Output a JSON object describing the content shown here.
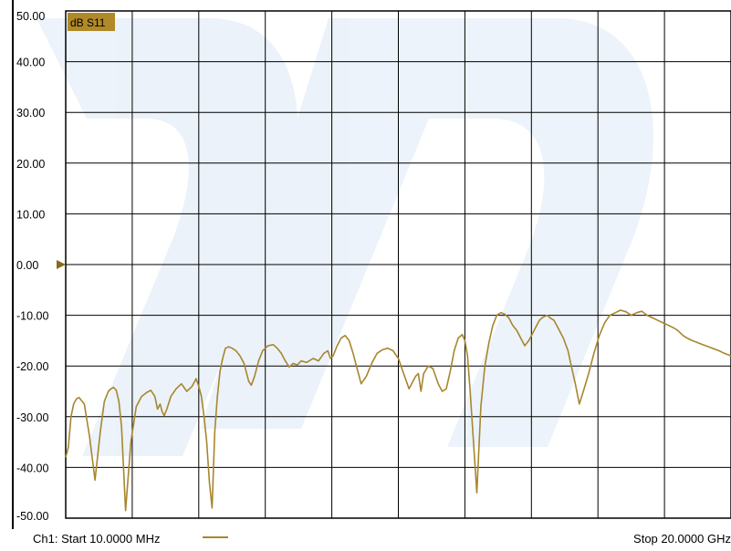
{
  "chart_data": {
    "type": "line",
    "trace_label": "dB S11",
    "ylim": [
      -50,
      50
    ],
    "y_ticks": [
      "50.00",
      "40.00",
      "30.00",
      "20.00",
      "10.00",
      "0.00",
      "-10.00",
      "-20.00",
      "-30.00",
      "-40.00",
      "-50.00"
    ],
    "x_divisions": 10,
    "reference_level": 0,
    "grid": true,
    "colors": {
      "trace": "#a8862e",
      "label_bg": "#b08a28",
      "marker": "#8a6a18",
      "grid": "#000000"
    },
    "series": [
      {
        "x_frac": [
          0.0,
          0.004,
          0.008,
          0.012,
          0.016,
          0.02,
          0.028,
          0.036,
          0.044,
          0.052,
          0.058,
          0.064,
          0.068,
          0.072,
          0.076,
          0.08,
          0.084,
          0.09,
          0.098,
          0.106,
          0.114,
          0.122,
          0.128,
          0.134,
          0.138,
          0.142,
          0.145,
          0.148,
          0.152,
          0.158,
          0.166,
          0.174,
          0.182,
          0.19,
          0.196,
          0.2,
          0.204,
          0.208,
          0.212,
          0.216,
          0.22,
          0.224,
          0.228,
          0.232,
          0.236,
          0.24,
          0.245,
          0.25,
          0.256,
          0.262,
          0.268,
          0.272,
          0.275,
          0.279,
          0.284,
          0.29,
          0.296,
          0.304,
          0.312,
          0.318,
          0.324,
          0.33,
          0.336,
          0.342,
          0.348,
          0.354,
          0.362,
          0.372,
          0.38,
          0.388,
          0.394,
          0.398,
          0.402,
          0.408,
          0.414,
          0.42,
          0.426,
          0.432,
          0.438,
          0.444,
          0.452,
          0.46,
          0.468,
          0.476,
          0.484,
          0.492,
          0.5,
          0.508,
          0.516,
          0.522,
          0.526,
          0.53,
          0.534,
          0.538,
          0.545,
          0.552,
          0.56,
          0.566,
          0.572,
          0.578,
          0.584,
          0.59,
          0.596,
          0.6,
          0.604,
          0.608,
          0.612,
          0.618,
          0.624,
          0.63,
          0.636,
          0.642,
          0.648,
          0.654,
          0.66,
          0.666,
          0.672,
          0.678,
          0.684,
          0.69,
          0.696,
          0.702,
          0.708,
          0.712,
          0.716,
          0.72,
          0.724,
          0.728,
          0.734,
          0.74,
          0.748,
          0.755,
          0.76,
          0.766,
          0.772,
          0.778,
          0.786,
          0.794,
          0.802,
          0.81,
          0.818,
          0.826,
          0.834,
          0.842,
          0.85,
          0.858,
          0.866,
          0.874,
          0.882,
          0.89,
          0.898,
          0.906,
          0.914,
          0.92,
          0.924,
          0.928,
          0.934,
          0.942,
          0.952,
          0.962,
          0.972,
          0.982,
          0.99,
          1.0
        ],
        "y": [
          -38.0,
          -36.0,
          -30.0,
          -27.5,
          -26.5,
          -26.2,
          -27.5,
          -34.0,
          -42.5,
          -33.0,
          -27.0,
          -25.0,
          -24.5,
          -24.2,
          -24.8,
          -27.0,
          -32.0,
          -48.5,
          -35.0,
          -28.0,
          -26.0,
          -25.2,
          -24.8,
          -26.0,
          -28.5,
          -27.5,
          -29.0,
          -29.8,
          -28.5,
          -26.0,
          -24.5,
          -23.5,
          -25.0,
          -24.0,
          -22.5,
          -24.0,
          -26.0,
          -30.0,
          -35.0,
          -43.0,
          -48.0,
          -33.0,
          -26.0,
          -21.0,
          -18.5,
          -16.5,
          -16.2,
          -16.5,
          -17.0,
          -18.0,
          -19.5,
          -21.5,
          -23.0,
          -23.8,
          -22.0,
          -19.0,
          -17.0,
          -16.0,
          -15.8,
          -16.5,
          -17.5,
          -19.0,
          -20.2,
          -19.5,
          -19.8,
          -19.0,
          -19.3,
          -18.5,
          -19.0,
          -17.5,
          -17.0,
          -18.5,
          -18.0,
          -16.0,
          -14.5,
          -14.0,
          -15.0,
          -17.5,
          -20.5,
          -23.5,
          -22.0,
          -19.5,
          -17.5,
          -16.8,
          -16.5,
          -17.0,
          -18.5,
          -21.5,
          -24.5,
          -23.0,
          -22.0,
          -21.5,
          -25.0,
          -21.5,
          -20.0,
          -20.5,
          -23.5,
          -25.0,
          -24.5,
          -21.0,
          -17.0,
          -14.5,
          -13.8,
          -15.0,
          -18.0,
          -25.0,
          -33.0,
          -45.0,
          -28.0,
          -20.0,
          -15.5,
          -12.0,
          -10.0,
          -9.5,
          -9.8,
          -10.5,
          -12.0,
          -13.0,
          -14.5,
          -16.0,
          -15.0,
          -13.5,
          -12.0,
          -11.0,
          -10.5,
          -10.2,
          -10.0,
          -10.5,
          -11.0,
          -12.5,
          -14.5,
          -17.0,
          -20.0,
          -23.5,
          -27.5,
          -25.0,
          -21.5,
          -17.5,
          -14.0,
          -11.5,
          -10.0,
          -9.5,
          -9.0,
          -9.3,
          -10.0,
          -9.5,
          -9.2,
          -10.0,
          -10.5,
          -11.0,
          -11.5,
          -12.0,
          -12.5,
          -13.0,
          -13.5,
          -14.0,
          -14.5,
          -15.0,
          -15.5,
          -16.0,
          -16.5,
          -17.0,
          -17.5,
          -18.0
        ]
      }
    ],
    "footer": {
      "start_label": "Ch1: Start  10.0000 MHz",
      "stop_label": "Stop  20.0000 GHz"
    }
  }
}
